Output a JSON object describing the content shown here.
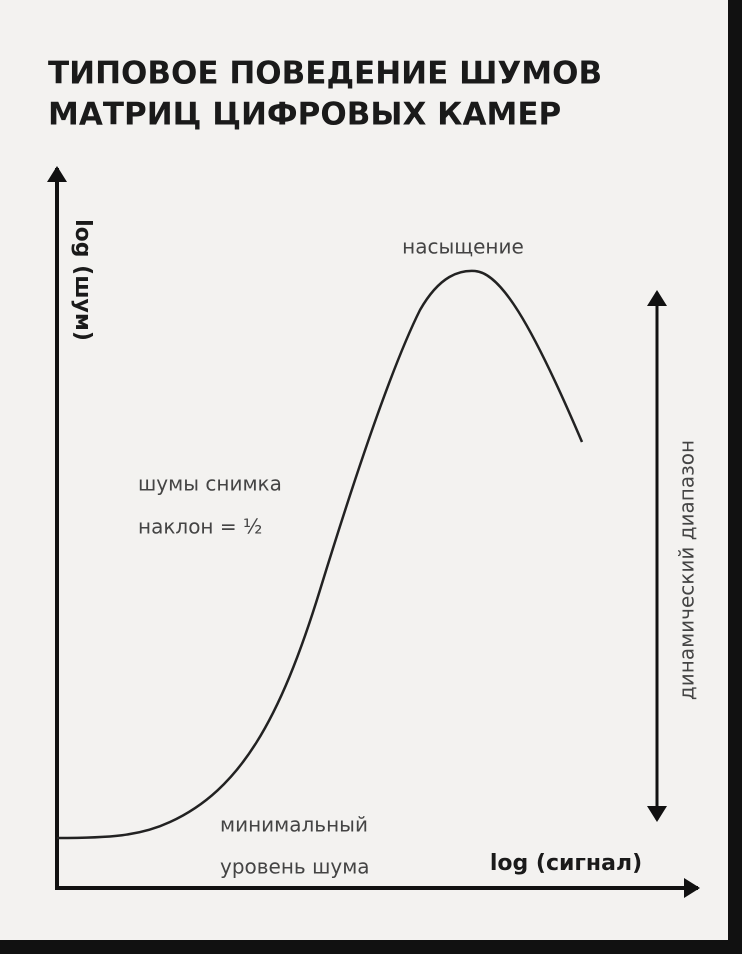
{
  "title": {
    "line1": "ТИПОВОЕ ПОВЕДЕНИЕ ШУМОВ",
    "line2": "МАТРИЦ ЦИФРОВЫХ КАМЕР"
  },
  "axes": {
    "y_label": "log (шум)",
    "x_label": "log (сигнал)"
  },
  "annotations": {
    "saturation": "насыщение",
    "shot_noise": "шумы снимка",
    "slope": "наклон = ½",
    "min_noise_line1": "минимальный",
    "min_noise_line2": "уровень шума",
    "dynamic_range": "динамический диапазон"
  }
}
